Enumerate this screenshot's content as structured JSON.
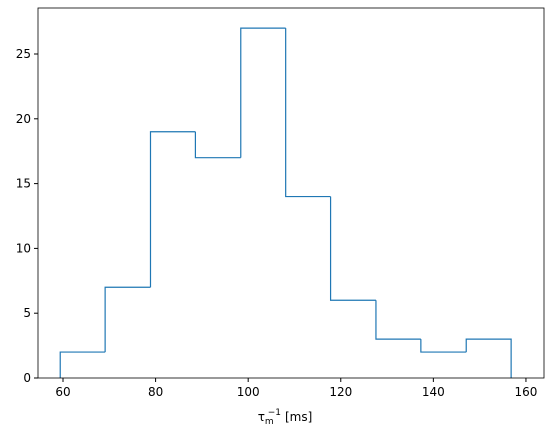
{
  "chart_data": {
    "type": "histogram",
    "bins": [
      59.4,
      69.1,
      78.9,
      88.6,
      98.4,
      108.1,
      117.8,
      127.6,
      137.3,
      147.1,
      156.8
    ],
    "counts": [
      2,
      7,
      19,
      17,
      27,
      14,
      6,
      3,
      2,
      3
    ],
    "color": "#1f77b4",
    "histtype": "step",
    "xlabel": {
      "symbol": "τ",
      "sub": "m",
      "sup": "−1",
      "unit": "[ms]"
    },
    "xlim": [
      54.6,
      163.9
    ],
    "xticks": [
      60,
      80,
      100,
      120,
      140,
      160
    ],
    "ylim": [
      0,
      28.55
    ],
    "yticks": [
      0,
      5,
      10,
      15,
      20,
      25
    ]
  }
}
